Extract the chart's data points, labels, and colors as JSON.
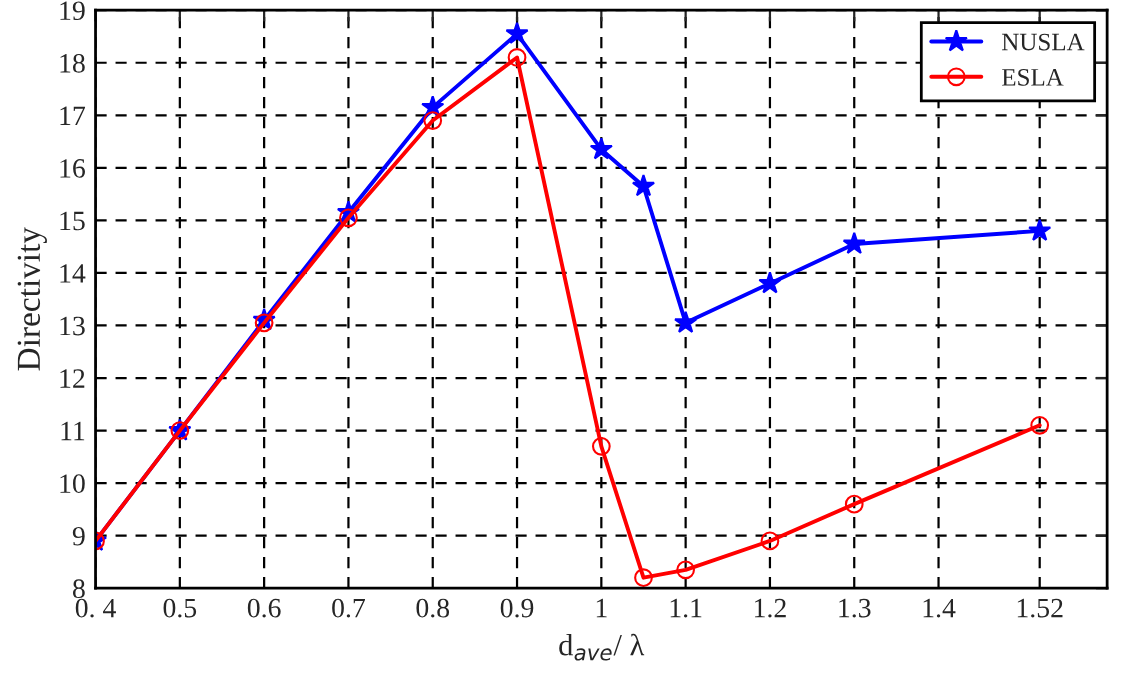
{
  "chart_data": {
    "type": "line",
    "xlabel": "d$_{ave}$/ λ",
    "ylabel": "Directivity",
    "xlim": [
      0.4,
      1.6
    ],
    "ylim": [
      8,
      19
    ],
    "xticks": [
      {
        "value": 0.4,
        "label": "0. 4"
      },
      0.5,
      0.6,
      0.7,
      0.8,
      0.9,
      1,
      1.1,
      1.2,
      1.3,
      1.4,
      1.52
    ],
    "yticks": [
      8,
      9,
      10,
      11,
      12,
      13,
      14,
      15,
      16,
      17,
      18,
      19
    ],
    "grid": true,
    "legend": "top right",
    "line_style": "solid",
    "series": [
      {
        "name": "NUSLA",
        "color": "#0000ff",
        "marker": "star",
        "x": [
          0.4,
          0.5,
          0.6,
          0.7,
          0.8,
          0.9,
          1.0,
          1.05,
          1.1,
          1.2,
          1.3,
          1.52
        ],
        "values": [
          8.9,
          11.0,
          13.1,
          15.15,
          17.15,
          18.55,
          16.35,
          15.65,
          13.05,
          13.8,
          14.55,
          14.8
        ]
      },
      {
        "name": "ESLA",
        "color": "#ff0000",
        "marker": "circle",
        "x": [
          0.4,
          0.5,
          0.6,
          0.7,
          0.8,
          0.9,
          1.0,
          1.05,
          1.1,
          1.2,
          1.3,
          1.52
        ],
        "values": [
          8.9,
          11.0,
          13.05,
          15.05,
          16.9,
          18.1,
          10.7,
          8.2,
          8.35,
          8.9,
          9.6,
          11.1
        ]
      }
    ]
  }
}
